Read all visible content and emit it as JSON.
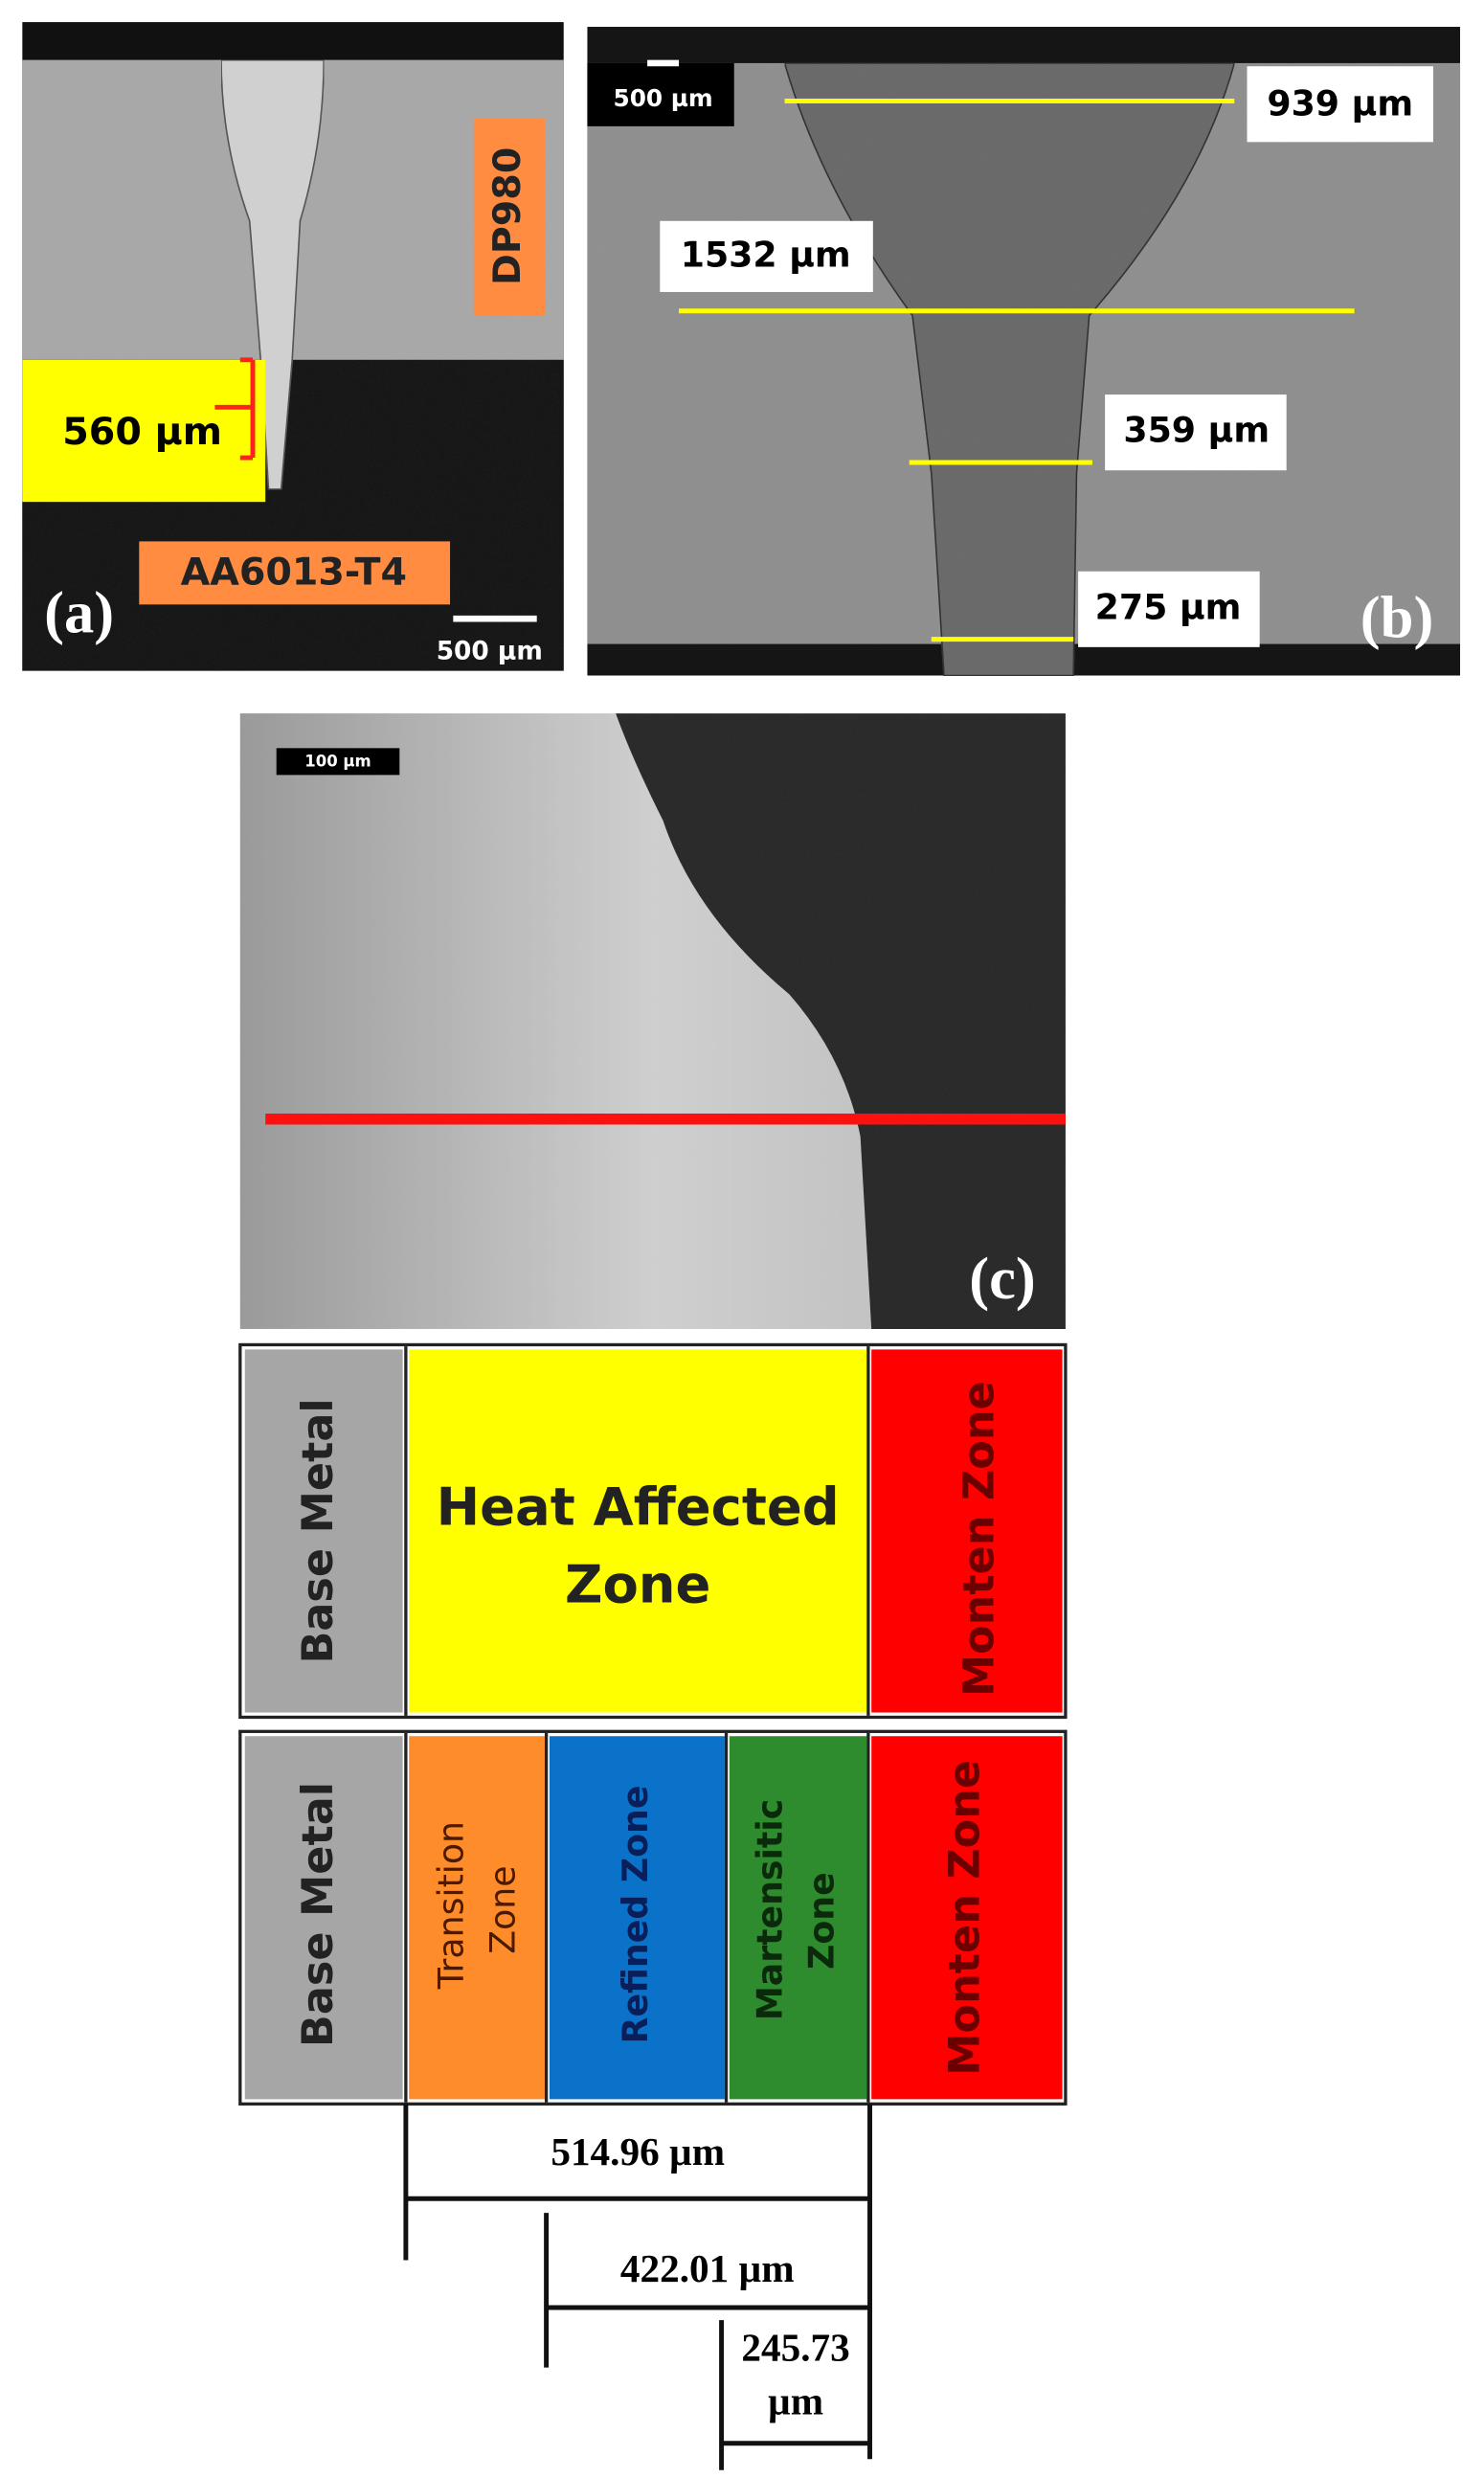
{
  "panels": {
    "a": {
      "label": "(a)",
      "scale_bar": "500 µm",
      "measurement": "560 µm",
      "materials": [
        "DP980",
        "AA6013-T4"
      ]
    },
    "b": {
      "label": "(b)",
      "scale_bar": "500 µm",
      "measurements": [
        "939 µm",
        "1532 µm",
        "359 µm",
        "275 µm"
      ]
    },
    "c": {
      "label": "(c)",
      "scale_bar": "100 µm"
    }
  },
  "zones": {
    "row1": {
      "base_metal": "Base Metal",
      "heat_affected": [
        "Heat Affected",
        "Zone"
      ],
      "monten": "Monten Zone"
    },
    "row2": {
      "base_metal": "Base Metal",
      "transition": [
        "Transition",
        "Zone"
      ],
      "refined": "Refined Zone",
      "martensitic": [
        "Martensitic",
        "Zone"
      ],
      "monten": "Monten Zone"
    }
  },
  "dimensions": {
    "d1": "514.96 µm",
    "d2": "422.01 µm",
    "d3": [
      "245.73",
      "µm"
    ]
  }
}
